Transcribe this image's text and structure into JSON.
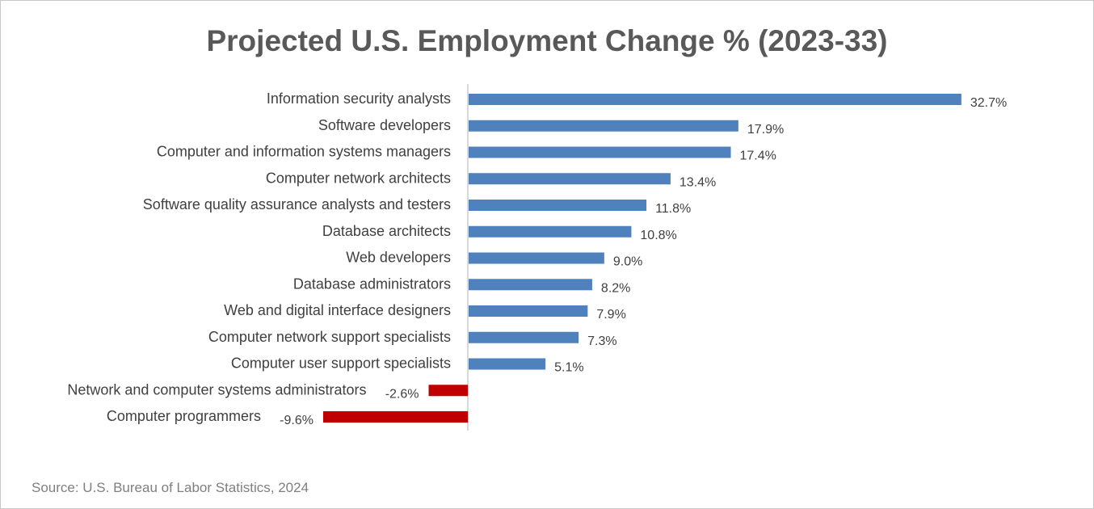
{
  "chart_data": {
    "type": "bar",
    "orientation": "horizontal",
    "title": "Projected U.S. Employment Change % (2023-33)",
    "source": "Source: U.S. Bureau of Labor Statistics, 2024",
    "categories": [
      "Information security analysts",
      "Software developers",
      "Computer and information systems managers",
      "Computer network architects",
      "Software quality assurance analysts and testers",
      "Database architects",
      "Web developers",
      "Database administrators",
      "Web and digital interface designers",
      "Computer network support specialists",
      "Computer user support specialists",
      "Network and computer systems administrators",
      "Computer programmers"
    ],
    "values": [
      32.7,
      17.9,
      17.4,
      13.4,
      11.8,
      10.8,
      9.0,
      8.2,
      7.9,
      7.3,
      5.1,
      -2.6,
      -9.6
    ],
    "value_labels": [
      "32.7%",
      "17.9%",
      "17.4%",
      "13.4%",
      "11.8%",
      "10.8%",
      "9.0%",
      "8.2%",
      "7.9%",
      "7.3%",
      "5.1%",
      "-2.6%",
      "-9.6%"
    ],
    "xlim": [
      -9.6,
      32.7
    ],
    "grid": false,
    "legend": "none",
    "colors": {
      "positive": "#4F81BD",
      "negative": "#C00000",
      "title": "#595959",
      "text": "#404040",
      "axis": "#D9D9D9"
    }
  }
}
